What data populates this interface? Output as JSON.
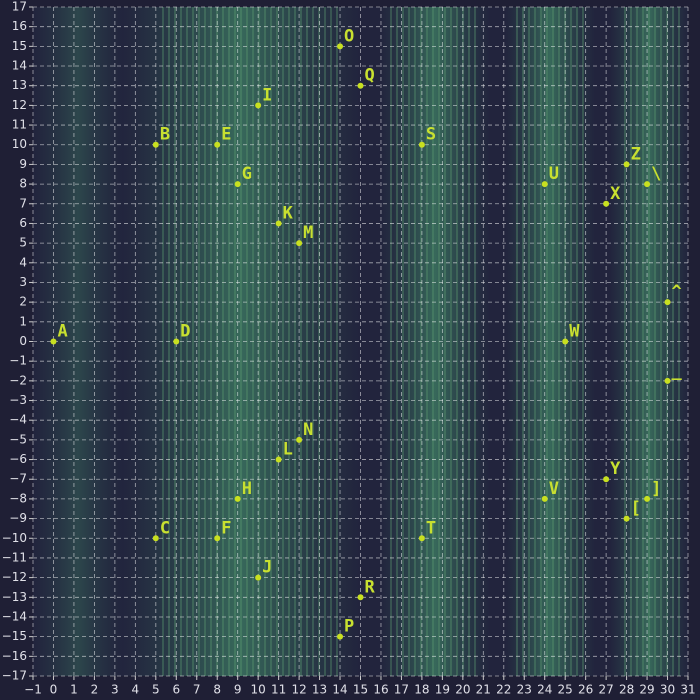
{
  "chart_data": {
    "type": "scatter",
    "x": [
      0,
      5,
      5,
      6,
      8,
      8,
      9,
      9,
      10,
      10,
      11,
      11,
      12,
      12,
      14,
      14,
      15,
      15,
      18,
      18,
      24,
      24,
      25,
      27,
      27,
      28,
      28,
      29,
      29,
      30,
      30
    ],
    "values": [
      0,
      10,
      -10,
      0,
      10,
      -10,
      8,
      -8,
      12,
      -12,
      6,
      -6,
      5,
      -5,
      15,
      -15,
      13,
      -13,
      10,
      -10,
      8,
      -8,
      0,
      7,
      -7,
      9,
      -9,
      8,
      -8,
      2,
      -2
    ],
    "labels": [
      "A",
      "B",
      "C",
      "D",
      "E",
      "F",
      "G",
      "H",
      "I",
      "J",
      "K",
      "L",
      "M",
      "N",
      "O",
      "P",
      "Q",
      "R",
      "S",
      "T",
      "U",
      "V",
      "W",
      "X",
      "Y",
      "Z",
      "[",
      "\\",
      "]",
      "^",
      "_"
    ],
    "color": "#c8e020",
    "xlim": [
      -1,
      31
    ],
    "ylim": [
      -17,
      17
    ],
    "xticks": [
      {
        "value": -1,
        "label": "−1"
      },
      0,
      1,
      2,
      3,
      4,
      5,
      6,
      7,
      8,
      9,
      10,
      11,
      12,
      13,
      14,
      15,
      16,
      17,
      18,
      19,
      20,
      21,
      22,
      23,
      24,
      25,
      26,
      27,
      28,
      29,
      30,
      31
    ],
    "yticks": [
      {
        "value": -17,
        "label": "−17"
      },
      {
        "value": -16,
        "label": "−16"
      },
      {
        "value": -15,
        "label": "−15"
      },
      {
        "value": -14,
        "label": "−14"
      },
      {
        "value": -13,
        "label": "−13"
      },
      {
        "value": -12,
        "label": "−12"
      },
      {
        "value": -11,
        "label": "−11"
      },
      {
        "value": -10,
        "label": "−10"
      },
      {
        "value": -9,
        "label": "−9"
      },
      {
        "value": -8,
        "label": "−8"
      },
      {
        "value": -7,
        "label": "−7"
      },
      {
        "value": -6,
        "label": "−6"
      },
      {
        "value": -5,
        "label": "−5"
      },
      {
        "value": -4,
        "label": "−4"
      },
      {
        "value": -3,
        "label": "−3"
      },
      {
        "value": -2,
        "label": "−2"
      },
      {
        "value": -1,
        "label": "−1"
      },
      0,
      1,
      2,
      3,
      4,
      5,
      6,
      7,
      8,
      9,
      10,
      11,
      12,
      13,
      14,
      15,
      16,
      17
    ],
    "grid": true
  }
}
